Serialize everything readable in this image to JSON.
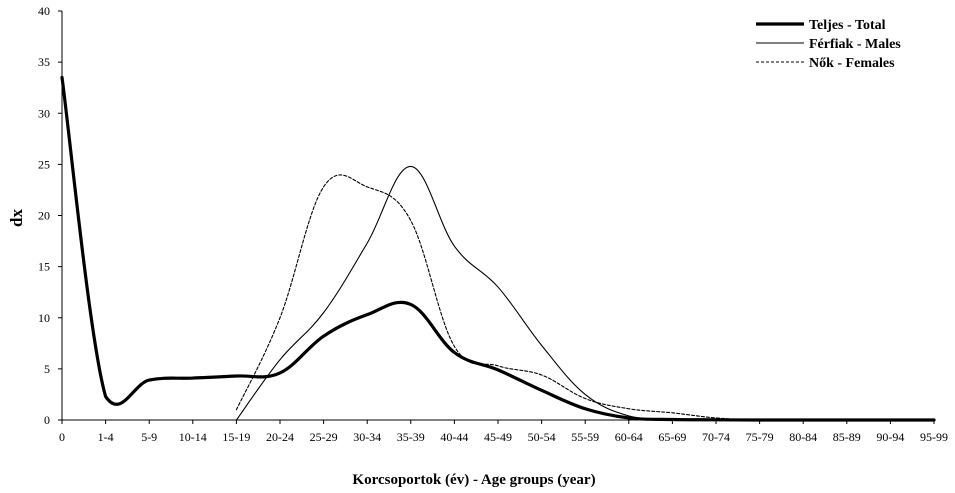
{
  "chart_data": {
    "type": "line",
    "xlabel": "Korcsoportok (év) - Age groups (year)",
    "ylabel": "dx",
    "ylim": [
      0,
      40
    ],
    "yticks": [
      "0",
      "5",
      "10",
      "15",
      "20",
      "25",
      "30",
      "35",
      "40"
    ],
    "categories": [
      "0",
      "1-4",
      "5-9",
      "10-14",
      "15-19",
      "20-24",
      "25-29",
      "30-34",
      "35-39",
      "40-44",
      "45-49",
      "50-54",
      "55-59",
      "60-64",
      "65-69",
      "70-74",
      "75-79",
      "80-84",
      "85-89",
      "90-94",
      "95-99"
    ],
    "grid": false,
    "legend_position": "top-right",
    "series": [
      {
        "name": "Teljes - Total",
        "style": "thick-solid",
        "color": "#000000",
        "values": [
          33.5,
          2.3,
          3.9,
          4.1,
          4.3,
          4.6,
          8.2,
          10.3,
          11.3,
          6.6,
          4.9,
          2.9,
          1.1,
          0.2,
          0.05,
          0.02,
          0,
          0,
          0,
          0,
          0
        ]
      },
      {
        "name": "Férfiak - Males",
        "style": "thin-solid",
        "color": "#000000",
        "values": [
          null,
          null,
          null,
          null,
          0,
          5.9,
          10.5,
          17.3,
          24.8,
          17.0,
          13.0,
          7.3,
          2.5,
          0.4,
          0.05,
          0.02,
          0,
          0,
          0,
          0,
          0
        ]
      },
      {
        "name": "Nők - Females",
        "style": "dashed",
        "color": "#000000",
        "values": [
          null,
          null,
          null,
          null,
          1.0,
          10.0,
          22.8,
          22.8,
          19.5,
          7.2,
          5.3,
          4.4,
          2.1,
          1.1,
          0.7,
          0.2,
          0,
          0,
          0,
          0,
          0
        ]
      }
    ]
  }
}
